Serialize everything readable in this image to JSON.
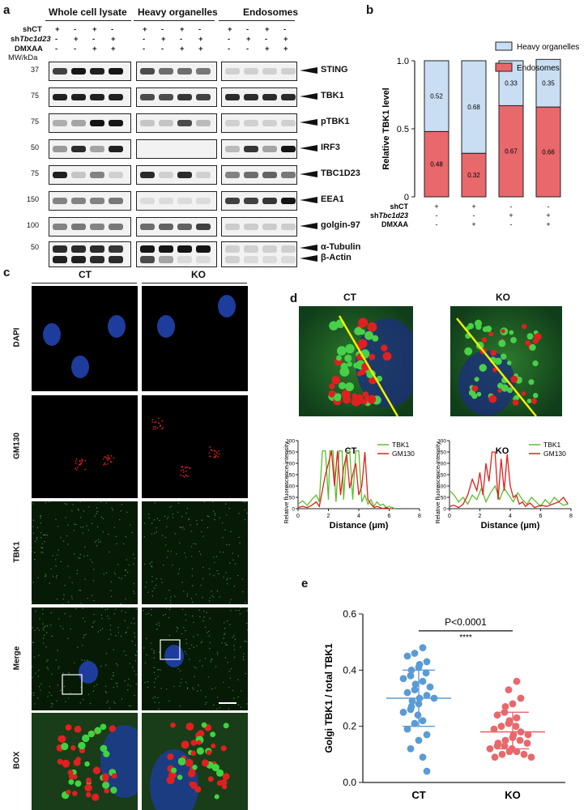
{
  "panel_labels": {
    "a": "a",
    "b": "b",
    "c": "c",
    "d": "d",
    "e": "e"
  },
  "panel_a": {
    "groups": [
      "Whole cell lysate",
      "Heavy organelles",
      "Endosomes"
    ],
    "condition_labels": {
      "shct": "shCT",
      "shtbc_prefix": "sh",
      "shtbc_italic": "Tbc1d23",
      "dmxaa": "DMXAA",
      "mw": "MW/kDa"
    },
    "condition_signs": {
      "shct": [
        "+",
        "-",
        "+",
        "-"
      ],
      "shtbc": [
        "-",
        "+",
        "-",
        "+"
      ],
      "dmxaa": [
        "-",
        "-",
        "+",
        "+"
      ]
    },
    "rows": [
      {
        "protein": "STING",
        "mw": "37"
      },
      {
        "protein": "TBK1",
        "mw": "75"
      },
      {
        "protein": "pTBK1",
        "mw": "75"
      },
      {
        "protein": "IRF3",
        "mw": "50"
      },
      {
        "protein": "TBC1D23",
        "mw": "75"
      },
      {
        "protein": "EEA1",
        "mw": "150"
      },
      {
        "protein": "golgin-97",
        "mw": "100"
      },
      {
        "protein": "α-Tubulin",
        "mw": "50"
      },
      {
        "protein": "β-Actin",
        "mw": ""
      }
    ]
  },
  "panel_b": {
    "chart_data": {
      "type": "bar",
      "stacked": true,
      "ylabel": "Relative TBK1 level",
      "ylim": [
        0,
        1.0
      ],
      "yticks": [
        "0",
        "0.5",
        "1.0"
      ],
      "series": [
        {
          "name": "Endosomes",
          "color": "#e8686c",
          "values": [
            0.48,
            0.32,
            0.67,
            0.66
          ]
        },
        {
          "name": "Heavy organelles",
          "color": "#c9def2",
          "values": [
            0.52,
            0.68,
            0.33,
            0.35
          ]
        }
      ],
      "value_labels": {
        "endo": [
          "0.48",
          "0.32",
          "0.67",
          "0.66"
        ],
        "heavy": [
          "0.52",
          "0.68",
          "0.33",
          "0.35"
        ]
      },
      "legend_position": "top-right",
      "condition_rows": {
        "shct": "shCT",
        "shtbc_prefix": "sh",
        "shtbc_italic": "Tbc1d23",
        "dmxaa": "DMXAA"
      },
      "condition_signs": {
        "shct": [
          "+",
          "+",
          "-",
          "-"
        ],
        "shtbc": [
          "-",
          "-",
          "+",
          "+"
        ],
        "dmxaa": [
          "-",
          "+",
          "-",
          "+"
        ]
      }
    }
  },
  "panel_c": {
    "columns": [
      "CT",
      "KO"
    ],
    "rows": [
      "DAPI",
      "GM130",
      "TBK1",
      "Merge",
      "BOX"
    ]
  },
  "panel_d": {
    "image_titles": [
      "CT",
      "KO"
    ],
    "chart_data": [
      {
        "type": "line",
        "title": "CT",
        "xlabel": "Distance (μm)",
        "ylabel": "Relative fluorescence intensity",
        "xlim": [
          0,
          8
        ],
        "ylim": [
          0,
          300
        ],
        "xticks": [
          "0",
          "2",
          "4",
          "6",
          "8"
        ],
        "yticks": [
          "0",
          "50",
          "100",
          "150",
          "200",
          "250",
          "300"
        ],
        "series": [
          {
            "name": "TBK1",
            "color": "#5cbf2a",
            "x": [
              0,
              0.3,
              0.6,
              0.9,
              1.2,
              1.4,
              1.6,
              1.8,
              2.0,
              2.1,
              2.3,
              2.5,
              2.7,
              2.9,
              3.0,
              3.2,
              3.4,
              3.6,
              3.8,
              4.0,
              4.2,
              4.4,
              4.6,
              4.8,
              5.0,
              5.2,
              5.4,
              5.6,
              5.8,
              6.0,
              6.2,
              6.4
            ],
            "y": [
              20,
              35,
              15,
              40,
              60,
              30,
              255,
              255,
              40,
              255,
              255,
              30,
              255,
              255,
              40,
              255,
              255,
              40,
              255,
              255,
              30,
              60,
              20,
              40,
              10,
              30,
              15,
              20,
              5,
              10,
              5,
              0
            ]
          },
          {
            "name": "GM130",
            "color": "#e0201c",
            "x": [
              0,
              0.3,
              0.6,
              0.9,
              1.2,
              1.4,
              1.6,
              1.8,
              2.0,
              2.2,
              2.4,
              2.6,
              2.8,
              3.0,
              3.2,
              3.4,
              3.6,
              3.8,
              4.0,
              4.2,
              4.4,
              4.6,
              4.8,
              5.0,
              5.2,
              5.4,
              5.6,
              5.8,
              6.0,
              6.2
            ],
            "y": [
              5,
              10,
              5,
              15,
              30,
              10,
              80,
              150,
              200,
              255,
              100,
              255,
              60,
              180,
              240,
              90,
              150,
              200,
              60,
              100,
              250,
              40,
              20,
              5,
              10,
              5,
              0,
              5,
              0,
              0
            ]
          }
        ]
      },
      {
        "type": "line",
        "title": "KO",
        "xlabel": "Distance (μm)",
        "ylabel": "Relative fluorescence intensity",
        "xlim": [
          0,
          8
        ],
        "ylim": [
          0,
          300
        ],
        "xticks": [
          "0",
          "2",
          "4",
          "6",
          "8"
        ],
        "yticks": [
          "0",
          "50",
          "100",
          "150",
          "200",
          "250",
          "300"
        ],
        "series": [
          {
            "name": "TBK1",
            "color": "#5cbf2a",
            "x": [
              0,
              0.3,
              0.6,
              0.9,
              1.2,
              1.5,
              1.8,
              2.1,
              2.4,
              2.7,
              3.0,
              3.3,
              3.6,
              3.9,
              4.2,
              4.5,
              4.8,
              5.1,
              5.4,
              5.7,
              6.0,
              6.3,
              6.6,
              6.9,
              7.2,
              7.5,
              7.8
            ],
            "y": [
              80,
              60,
              30,
              50,
              20,
              60,
              40,
              90,
              30,
              70,
              100,
              40,
              90,
              60,
              30,
              70,
              40,
              20,
              50,
              30,
              10,
              40,
              20,
              50,
              30,
              15,
              20
            ]
          },
          {
            "name": "GM130",
            "color": "#e0201c",
            "x": [
              0,
              0.3,
              0.6,
              0.9,
              1.2,
              1.5,
              1.8,
              2.0,
              2.2,
              2.4,
              2.6,
              2.8,
              3.0,
              3.2,
              3.4,
              3.6,
              3.8,
              4.0,
              4.2,
              4.4,
              4.6,
              4.8,
              5.0,
              5.3,
              5.6,
              6.0,
              6.4,
              6.8,
              7.2,
              7.5,
              7.8
            ],
            "y": [
              10,
              15,
              5,
              20,
              60,
              130,
              80,
              160,
              60,
              200,
              120,
              250,
              250,
              40,
              220,
              80,
              240,
              100,
              50,
              60,
              20,
              30,
              10,
              25,
              5,
              15,
              10,
              20,
              30,
              50,
              20
            ]
          }
        ]
      }
    ]
  },
  "panel_e": {
    "chart_data": {
      "type": "scatter",
      "ylabel": "Golgi TBK1 / total TBK1",
      "categories": [
        "CT",
        "KO"
      ],
      "ylim": [
        0,
        0.6
      ],
      "yticks": [
        "0.0",
        "0.2",
        "0.4",
        "0.6"
      ],
      "pvalue": "P<0.0001",
      "stars": "****",
      "series": [
        {
          "name": "CT",
          "color": "#5b9bd5",
          "mean": 0.3,
          "sd_low": 0.2,
          "sd_high": 0.4,
          "values": [
            0.48,
            0.46,
            0.45,
            0.43,
            0.42,
            0.41,
            0.4,
            0.39,
            0.38,
            0.37,
            0.36,
            0.35,
            0.34,
            0.33,
            0.32,
            0.31,
            0.3,
            0.3,
            0.29,
            0.28,
            0.27,
            0.26,
            0.25,
            0.24,
            0.22,
            0.21,
            0.19,
            0.17,
            0.15,
            0.12,
            0.09,
            0.04
          ]
        },
        {
          "name": "KO",
          "color": "#e8686c",
          "mean": 0.18,
          "sd_low": 0.12,
          "sd_high": 0.25,
          "values": [
            0.36,
            0.33,
            0.3,
            0.28,
            0.27,
            0.25,
            0.24,
            0.23,
            0.22,
            0.21,
            0.2,
            0.2,
            0.19,
            0.18,
            0.17,
            0.17,
            0.16,
            0.15,
            0.15,
            0.14,
            0.14,
            0.13,
            0.13,
            0.12,
            0.12,
            0.11,
            0.11,
            0.1,
            0.1,
            0.09,
            0.09
          ]
        }
      ]
    }
  }
}
